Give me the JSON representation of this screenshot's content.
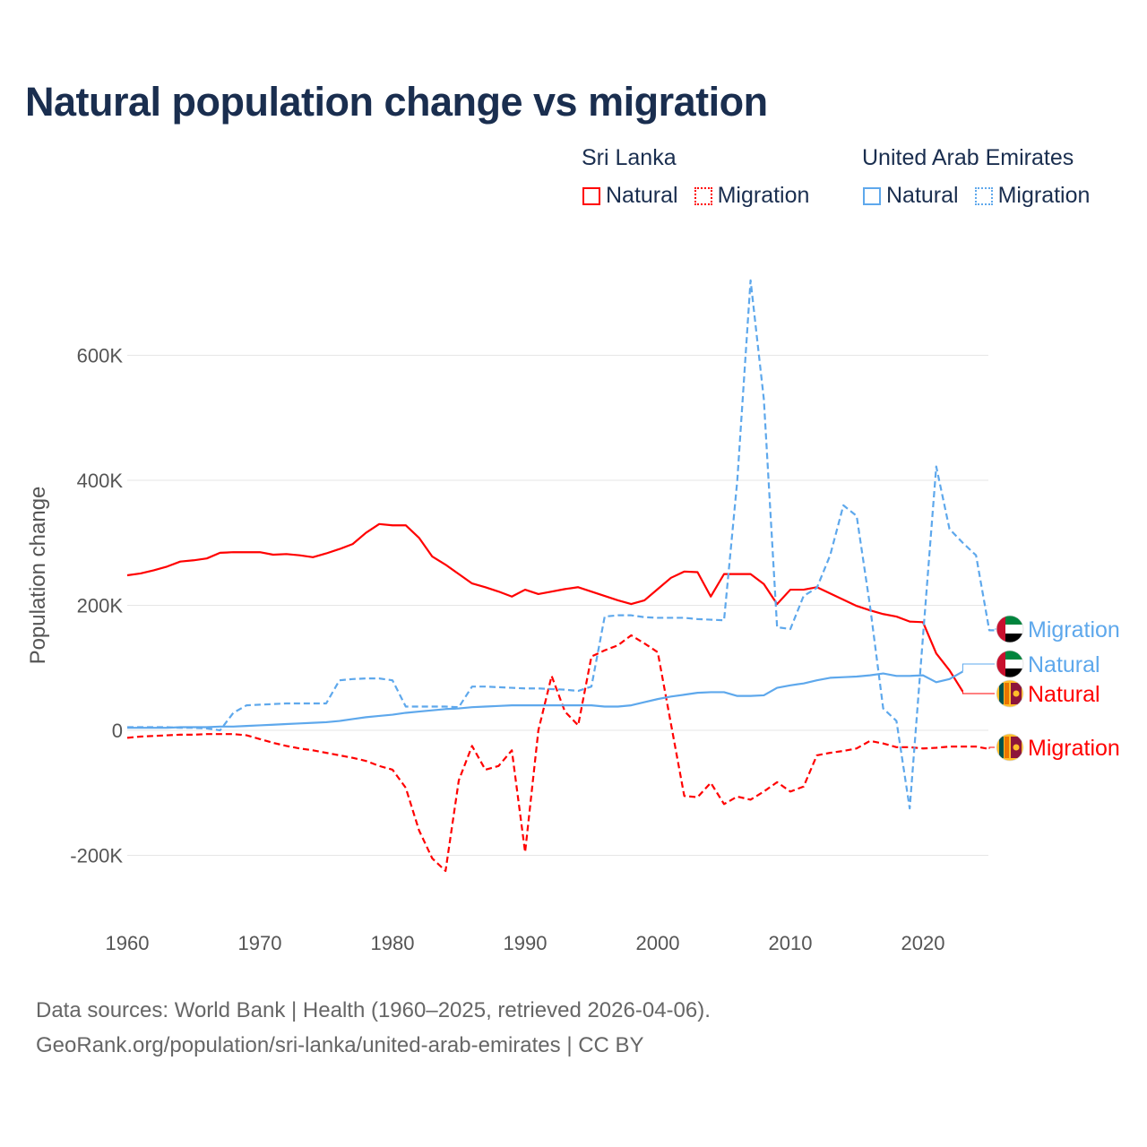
{
  "title": "Natural population change vs migration",
  "legend": {
    "groups": [
      {
        "name": "Sri Lanka",
        "color": "#ff0000",
        "items": [
          "Natural",
          "Migration"
        ]
      },
      {
        "name": "United Arab Emirates",
        "color": "#5ea8ec",
        "items": [
          "Natural",
          "Migration"
        ]
      }
    ]
  },
  "footer": {
    "line1": "Data sources: World Bank | Health (1960–2025, retrieved 2026-04-06).",
    "line2": "GeoRank.org/population/sri-lanka/united-arab-emirates | CC BY"
  },
  "chart_data": {
    "type": "line",
    "title": "Natural population change vs migration",
    "xlabel": "",
    "ylabel": "Population change",
    "xlim": [
      1960,
      2025
    ],
    "ylim": [
      -300000,
      720000
    ],
    "x_ticks": [
      "1960",
      "1970",
      "1980",
      "1990",
      "2000",
      "2010",
      "2020"
    ],
    "y_ticks": [
      {
        "v": 600000,
        "label": "600K"
      },
      {
        "v": 400000,
        "label": "400K"
      },
      {
        "v": 200000,
        "label": "200K"
      },
      {
        "v": 0,
        "label": "0"
      },
      {
        "v": -200000,
        "label": "-200K"
      }
    ],
    "grid": true,
    "series": [
      {
        "name": "Sri Lanka Natural",
        "label": "Natural",
        "color": "#ff0000",
        "dash": false,
        "start": 1960,
        "flag": "sri-lanka",
        "values_k": [
          248,
          251,
          256,
          262,
          270,
          272,
          275,
          284,
          285,
          285,
          285,
          281,
          282,
          280,
          277,
          283,
          290,
          298,
          316,
          330,
          328,
          328,
          308,
          278,
          265,
          250,
          235,
          229,
          222,
          214,
          225,
          218,
          222,
          226,
          229,
          222,
          215,
          208,
          202,
          208,
          226,
          244,
          254,
          253,
          214,
          250,
          250,
          250,
          234,
          202,
          225,
          225,
          229,
          219,
          209,
          199,
          192,
          186,
          182,
          174,
          173,
          123,
          96,
          62
        ]
      },
      {
        "name": "Sri Lanka Migration",
        "label": "Migration",
        "color": "#ff0000",
        "dash": true,
        "start": 1960,
        "flag": "sri-lanka",
        "values_k": [
          -12,
          -10,
          -9,
          -8,
          -7,
          -7,
          -6,
          -6,
          -6,
          -8,
          -14,
          -20,
          -25,
          -29,
          -32,
          -36,
          -40,
          -44,
          -49,
          -57,
          -63,
          -92,
          -160,
          -205,
          -225,
          -80,
          -25,
          -63,
          -57,
          -32,
          -195,
          0,
          87,
          30,
          8,
          118,
          128,
          136,
          152,
          139,
          125,
          10,
          -105,
          -107,
          -84,
          -118,
          -106,
          -111,
          -98,
          -83,
          -98,
          -90,
          -40,
          -36,
          -33,
          -29,
          -17,
          -21,
          -27,
          -27,
          -29,
          -28,
          -26,
          -26,
          -26,
          -30
        ]
      },
      {
        "name": "United Arab Emirates Natural",
        "label": "Natural",
        "color": "#5ea8ec",
        "dash": false,
        "start": 1960,
        "flag": "uae",
        "values_k": [
          4,
          4,
          4,
          4,
          5,
          5,
          5,
          6,
          6,
          7,
          8,
          9,
          10,
          11,
          12,
          13,
          15,
          18,
          21,
          23,
          25,
          28,
          30,
          32,
          34,
          35,
          37,
          38,
          39,
          40,
          40,
          40,
          40,
          40,
          40,
          40,
          38,
          38,
          40,
          45,
          50,
          54,
          57,
          60,
          61,
          61,
          55,
          55,
          56,
          68,
          72,
          75,
          80,
          84,
          85,
          86,
          88,
          91,
          87,
          87,
          88,
          77,
          82,
          94
        ]
      },
      {
        "name": "United Arab Emirates Migration",
        "label": "Migration",
        "color": "#5ea8ec",
        "dash": true,
        "start": 1960,
        "flag": "uae",
        "values_k": [
          5,
          5,
          5,
          5,
          4,
          4,
          3,
          0,
          28,
          40,
          41,
          42,
          43,
          43,
          43,
          43,
          80,
          82,
          83,
          83,
          80,
          38,
          38,
          38,
          38,
          37,
          70,
          70,
          69,
          68,
          67,
          67,
          66,
          65,
          63,
          70,
          182,
          184,
          184,
          181,
          180,
          180,
          180,
          178,
          177,
          176,
          400,
          720,
          530,
          165,
          162,
          215,
          228,
          280,
          360,
          343,
          200,
          35,
          15,
          -125,
          150,
          422,
          322,
          300,
          280,
          160,
          160
        ]
      }
    ]
  }
}
